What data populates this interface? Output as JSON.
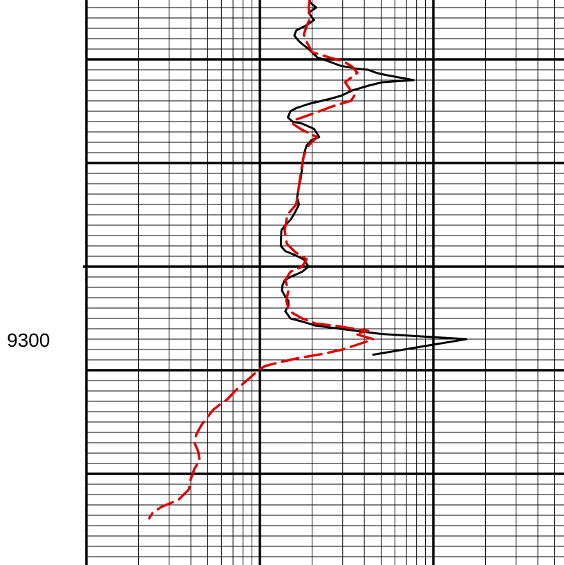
{
  "chart_data": {
    "type": "line",
    "title": "",
    "xlabel": "",
    "ylabel": "",
    "x_scale": "log",
    "x_range": [
      1,
      1000
    ],
    "depth_range": [
      9040,
      9570
    ],
    "depth_labels": [
      {
        "depth": 9300,
        "text": "9300"
      }
    ],
    "grid": true,
    "colors": {
      "grid": "#000000",
      "series_1": "#000000",
      "series_2": "#e00000"
    },
    "series": [
      {
        "style": "solid",
        "color": "#000000",
        "points": [
          [
            19.1,
            9040
          ],
          [
            19.5,
            9045
          ],
          [
            21.1,
            9050
          ],
          [
            19.1,
            9055
          ],
          [
            20.5,
            9062
          ],
          [
            18.6,
            9067
          ],
          [
            16.2,
            9072
          ],
          [
            15.8,
            9077
          ],
          [
            16.7,
            9082
          ],
          [
            17.5,
            9085
          ],
          [
            19.1,
            9090
          ],
          [
            21.4,
            9098
          ],
          [
            25.0,
            9102
          ],
          [
            29.0,
            9106
          ],
          [
            36.0,
            9109
          ],
          [
            42.0,
            9110
          ],
          [
            47.0,
            9113
          ],
          [
            53.0,
            9115
          ],
          [
            77.0,
            9120
          ],
          [
            51.0,
            9122
          ],
          [
            43.0,
            9125
          ],
          [
            34.0,
            9130
          ],
          [
            29.5,
            9135
          ],
          [
            25.5,
            9138
          ],
          [
            19.1,
            9143
          ],
          [
            16.2,
            9147
          ],
          [
            15.0,
            9150
          ],
          [
            14.5,
            9156
          ],
          [
            15.4,
            9160
          ],
          [
            17.5,
            9162
          ],
          [
            20.5,
            9167
          ],
          [
            22.0,
            9175
          ],
          [
            19.8,
            9178
          ],
          [
            18.6,
            9183
          ],
          [
            17.9,
            9192
          ],
          [
            17.5,
            9205
          ],
          [
            17.2,
            9215
          ],
          [
            16.7,
            9225
          ],
          [
            16.4,
            9233
          ],
          [
            16.8,
            9240
          ],
          [
            15.9,
            9248
          ],
          [
            15.0,
            9255
          ],
          [
            14.0,
            9260
          ],
          [
            13.3,
            9265
          ],
          [
            13.2,
            9280
          ],
          [
            14.0,
            9285
          ],
          [
            15.5,
            9288
          ],
          [
            17.9,
            9293
          ],
          [
            19.1,
            9300
          ],
          [
            17.5,
            9305
          ],
          [
            15.0,
            9310
          ],
          [
            13.9,
            9313
          ],
          [
            13.5,
            9318
          ],
          [
            13.4,
            9323
          ],
          [
            13.9,
            9328
          ],
          [
            14.6,
            9333
          ],
          [
            14.6,
            9338
          ],
          [
            14.0,
            9343
          ],
          [
            15.0,
            9350
          ],
          [
            17.5,
            9353
          ],
          [
            21.0,
            9357
          ],
          [
            29.0,
            9360
          ],
          [
            50.0,
            9365
          ],
          [
            155.0,
            9370
          ],
          [
            80.0,
            9378
          ],
          [
            45.0,
            9385
          ]
        ]
      },
      {
        "style": "dashed",
        "color": "#e00000",
        "points": [
          [
            19.5,
            9040
          ],
          [
            19.1,
            9050
          ],
          [
            19.5,
            9060
          ],
          [
            18.6,
            9068
          ],
          [
            17.9,
            9076
          ],
          [
            18.6,
            9083
          ],
          [
            20.0,
            9093
          ],
          [
            25.0,
            9098
          ],
          [
            30.5,
            9102
          ],
          [
            34.0,
            9107
          ],
          [
            36.5,
            9113
          ],
          [
            31.0,
            9122
          ],
          [
            35.0,
            9135
          ],
          [
            33.5,
            9140
          ],
          [
            26.5,
            9145
          ],
          [
            20.5,
            9152
          ],
          [
            16.2,
            9158
          ],
          [
            15.4,
            9162
          ],
          [
            17.5,
            9168
          ],
          [
            21.4,
            9175
          ],
          [
            19.1,
            9183
          ],
          [
            17.9,
            9193
          ],
          [
            17.2,
            9210
          ],
          [
            16.7,
            9225
          ],
          [
            16.2,
            9240
          ],
          [
            14.4,
            9250
          ],
          [
            13.9,
            9265
          ],
          [
            14.3,
            9278
          ],
          [
            16.0,
            9286
          ],
          [
            18.6,
            9293
          ],
          [
            17.5,
            9300
          ],
          [
            15.0,
            9305
          ],
          [
            14.0,
            9313
          ],
          [
            14.6,
            9323
          ],
          [
            14.2,
            9333
          ],
          [
            14.8,
            9343
          ],
          [
            17.5,
            9350
          ],
          [
            21.0,
            9355
          ],
          [
            27.0,
            9357
          ],
          [
            35.0,
            9360
          ],
          [
            42.0,
            9362
          ],
          [
            35.5,
            9365
          ],
          [
            45.0,
            9370
          ],
          [
            37.0,
            9375
          ],
          [
            30.0,
            9380
          ],
          [
            23.5,
            9384
          ],
          [
            17.0,
            9388
          ],
          [
            13.2,
            9392
          ],
          [
            10.7,
            9396
          ],
          [
            9.8,
            9400
          ],
          [
            8.8,
            9407
          ],
          [
            8.0,
            9413
          ],
          [
            7.2,
            9420
          ],
          [
            6.5,
            9428
          ],
          [
            5.9,
            9433
          ],
          [
            5.4,
            9438
          ],
          [
            5.0,
            9445
          ],
          [
            4.6,
            9453
          ],
          [
            4.3,
            9462
          ],
          [
            4.2,
            9470
          ],
          [
            4.4,
            9478
          ],
          [
            4.5,
            9487
          ],
          [
            4.2,
            9495
          ],
          [
            4.0,
            9505
          ],
          [
            3.9,
            9515
          ],
          [
            3.4,
            9525
          ],
          [
            2.7,
            9532
          ],
          [
            2.4,
            9538
          ],
          [
            2.3,
            9543
          ]
        ]
      }
    ]
  }
}
